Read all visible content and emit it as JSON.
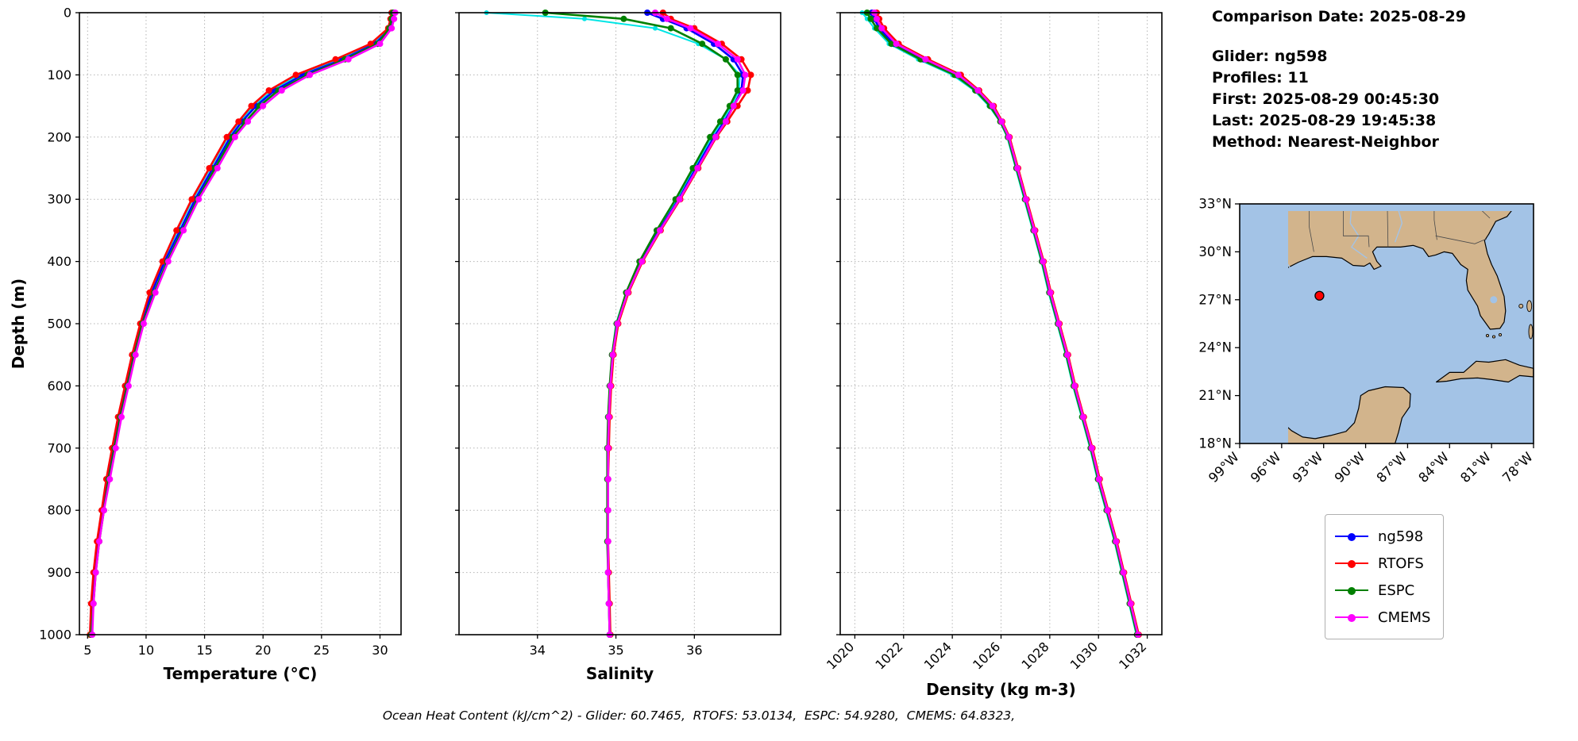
{
  "figure": {
    "background": "#ffffff"
  },
  "info_panel": {
    "comparison_date": "Comparison Date: 2025-08-29",
    "lines": [
      "Glider: ng598",
      "Profiles: 11",
      "First: 2025-08-29 00:45:30",
      "Last: 2025-08-29 19:45:38",
      "Method: Nearest-Neighbor"
    ]
  },
  "legend": {
    "items": [
      {
        "label": "ng598",
        "color": "#0000ff"
      },
      {
        "label": "RTOFS",
        "color": "#ff0000"
      },
      {
        "label": "ESPC",
        "color": "#008000"
      },
      {
        "label": "CMEMS",
        "color": "#ff00ff"
      }
    ]
  },
  "footer": {
    "ohc_text": "Ocean Heat Content (kJ/cm^2) - Glider: 60.7465,  RTOFS: 53.0134,  ESPC: 54.9280,  CMEMS: 64.8323,"
  },
  "map": {
    "land_color": "#d2b48c",
    "ocean_color": "#a3c3e6",
    "lat_tick_labels": [
      "33°N",
      "30°N",
      "27°N",
      "24°N",
      "21°N",
      "18°N"
    ],
    "lat_tick_values": [
      33,
      30,
      27,
      24,
      21,
      18
    ],
    "lon_tick_labels": [
      "99°W",
      "96°W",
      "93°W",
      "90°W",
      "87°W",
      "84°W",
      "81°W",
      "78°W"
    ],
    "lon_tick_values": [
      99,
      96,
      93,
      90,
      87,
      84,
      81,
      78
    ],
    "extent": {
      "lon_w_min": 99,
      "lon_w_max": 78,
      "lat_min": 18,
      "lat_max": 33
    },
    "marker": {
      "lon_w": 93.3,
      "lat": 27.25,
      "color": "#ff0000"
    }
  },
  "chart_data": [
    {
      "type": "line",
      "xlabel": "Temperature (°C)",
      "ylabel": "Depth (m)",
      "xlim": [
        4.3,
        31.8
      ],
      "ylim": [
        1000,
        0
      ],
      "xticks": [
        5,
        10,
        15,
        20,
        25,
        30
      ],
      "yticks": [
        0,
        100,
        200,
        300,
        400,
        500,
        600,
        700,
        800,
        900,
        1000
      ],
      "rotate_xticklabels": false,
      "depths": [
        0,
        10,
        25,
        50,
        75,
        100,
        125,
        150,
        175,
        200,
        250,
        300,
        350,
        400,
        450,
        500,
        550,
        600,
        650,
        700,
        750,
        800,
        850,
        900,
        950,
        1000
      ],
      "series": [
        {
          "name": "",
          "color": "#00e5e5",
          "lw": 2,
          "ms": 3,
          "values": [
            30.9,
            31.0,
            30.8,
            29.4,
            26.5,
            23.1,
            20.8,
            19.2,
            18.0,
            17.0,
            15.5,
            14.0,
            12.7,
            11.5,
            10.4,
            9.5,
            8.8,
            8.2,
            7.6,
            7.1,
            6.6,
            6.2,
            5.8,
            5.5,
            5.3,
            5.2
          ]
        },
        {
          "name": "ng598",
          "color": "#0000ff",
          "values": [
            31.2,
            31.1,
            30.9,
            29.6,
            26.8,
            23.4,
            21.0,
            19.4,
            18.2,
            17.2,
            15.7,
            14.2,
            12.9,
            11.6,
            10.5,
            9.6,
            8.9,
            8.3,
            7.7,
            7.2,
            6.7,
            6.3,
            5.9,
            5.6,
            5.4,
            5.3
          ]
        },
        {
          "name": "RTOFS",
          "color": "#ff0000",
          "values": [
            31.0,
            30.9,
            30.7,
            29.2,
            26.2,
            22.8,
            20.5,
            19.0,
            17.9,
            16.9,
            15.4,
            13.9,
            12.6,
            11.4,
            10.3,
            9.5,
            8.8,
            8.2,
            7.6,
            7.1,
            6.6,
            6.2,
            5.8,
            5.5,
            5.3,
            5.2
          ]
        },
        {
          "name": "ESPC",
          "color": "#008000",
          "values": [
            31.1,
            31.0,
            30.8,
            29.8,
            27.0,
            23.8,
            21.3,
            19.7,
            18.5,
            17.4,
            15.9,
            14.4,
            13.1,
            11.8,
            10.7,
            9.7,
            9.0,
            8.4,
            7.8,
            7.3,
            6.8,
            6.4,
            6.0,
            5.7,
            5.5,
            5.3
          ]
        },
        {
          "name": "CMEMS",
          "color": "#ff00ff",
          "values": [
            31.3,
            31.2,
            31.0,
            30.0,
            27.3,
            24.0,
            21.6,
            20.0,
            18.7,
            17.6,
            16.1,
            14.5,
            13.2,
            11.9,
            10.8,
            9.8,
            9.1,
            8.5,
            7.9,
            7.4,
            6.9,
            6.4,
            6.0,
            5.7,
            5.5,
            5.4
          ]
        }
      ]
    },
    {
      "type": "line",
      "xlabel": "Salinity",
      "ylabel": "",
      "xlim": [
        33.0,
        37.1
      ],
      "ylim": [
        1000,
        0
      ],
      "xticks": [
        34,
        35,
        36
      ],
      "yticks": [
        0,
        100,
        200,
        300,
        400,
        500,
        600,
        700,
        800,
        900,
        1000
      ],
      "rotate_xticklabels": false,
      "depths": [
        0,
        10,
        25,
        50,
        75,
        100,
        125,
        150,
        175,
        200,
        250,
        300,
        350,
        400,
        450,
        500,
        550,
        600,
        650,
        700,
        750,
        800,
        850,
        900,
        950,
        1000
      ],
      "series": [
        {
          "name": "",
          "color": "#00e5e5",
          "lw": 2,
          "ms": 3,
          "values": [
            33.35,
            34.6,
            35.5,
            36.05,
            36.4,
            36.58,
            36.57,
            36.47,
            36.35,
            36.22,
            36.0,
            35.78,
            35.53,
            35.3,
            35.13,
            35.0,
            34.95,
            34.92,
            34.9,
            34.89,
            34.89,
            34.89,
            34.89,
            34.9,
            34.91,
            34.92
          ]
        },
        {
          "name": "ng598",
          "color": "#0000ff",
          "values": [
            35.4,
            35.6,
            35.9,
            36.25,
            36.5,
            36.62,
            36.6,
            36.5,
            36.38,
            36.25,
            36.02,
            35.8,
            35.55,
            35.32,
            35.15,
            35.02,
            34.96,
            34.93,
            34.91,
            34.9,
            34.9,
            34.9,
            34.9,
            34.9,
            34.91,
            34.92
          ]
        },
        {
          "name": "RTOFS",
          "color": "#ff0000",
          "values": [
            35.6,
            35.7,
            36.0,
            36.35,
            36.6,
            36.72,
            36.68,
            36.55,
            36.42,
            36.28,
            36.05,
            35.82,
            35.57,
            35.34,
            35.16,
            35.03,
            34.97,
            34.94,
            34.92,
            34.91,
            34.9,
            34.9,
            34.9,
            34.91,
            34.92,
            34.93
          ]
        },
        {
          "name": "ESPC",
          "color": "#008000",
          "values": [
            34.1,
            35.1,
            35.7,
            36.1,
            36.4,
            36.55,
            36.55,
            36.45,
            36.33,
            36.2,
            35.98,
            35.76,
            35.52,
            35.3,
            35.13,
            35.01,
            34.95,
            34.92,
            34.9,
            34.89,
            34.89,
            34.89,
            34.89,
            34.9,
            34.91,
            34.92
          ]
        },
        {
          "name": "CMEMS",
          "color": "#ff00ff",
          "values": [
            35.5,
            35.65,
            35.95,
            36.3,
            36.55,
            36.65,
            36.62,
            36.5,
            36.4,
            36.27,
            36.04,
            35.81,
            35.56,
            35.33,
            35.15,
            35.02,
            34.96,
            34.93,
            34.91,
            34.9,
            34.9,
            34.9,
            34.9,
            34.9,
            34.91,
            34.92
          ]
        }
      ]
    },
    {
      "type": "line",
      "xlabel": "Density (kg m-3)",
      "ylabel": "",
      "xlim": [
        1019.4,
        1032.6
      ],
      "ylim": [
        1000,
        0
      ],
      "xticks": [
        1020,
        1022,
        1024,
        1026,
        1028,
        1030,
        1032
      ],
      "yticks": [
        0,
        100,
        200,
        300,
        400,
        500,
        600,
        700,
        800,
        900,
        1000
      ],
      "rotate_xticklabels": true,
      "depths": [
        0,
        10,
        25,
        50,
        75,
        100,
        125,
        150,
        175,
        200,
        250,
        300,
        350,
        400,
        450,
        500,
        550,
        600,
        650,
        700,
        750,
        800,
        850,
        900,
        950,
        1000
      ],
      "series": [
        {
          "name": "",
          "color": "#00e5e5",
          "lw": 2,
          "ms": 3,
          "values": [
            1020.3,
            1020.5,
            1020.8,
            1021.4,
            1022.6,
            1024.0,
            1024.9,
            1025.5,
            1025.95,
            1026.25,
            1026.6,
            1026.95,
            1027.3,
            1027.65,
            1027.95,
            1028.3,
            1028.65,
            1028.95,
            1029.3,
            1029.65,
            1029.95,
            1030.3,
            1030.65,
            1030.95,
            1031.25,
            1031.55
          ]
        },
        {
          "name": "ng598",
          "color": "#0000ff",
          "values": [
            1020.7,
            1020.8,
            1021.0,
            1021.6,
            1022.8,
            1024.2,
            1025.0,
            1025.6,
            1026.0,
            1026.3,
            1026.65,
            1027.0,
            1027.35,
            1027.7,
            1028.0,
            1028.35,
            1028.7,
            1029.0,
            1029.35,
            1029.7,
            1030.0,
            1030.35,
            1030.7,
            1031.0,
            1031.3,
            1031.6
          ]
        },
        {
          "name": "RTOFS",
          "color": "#ff0000",
          "values": [
            1020.9,
            1021.0,
            1021.2,
            1021.8,
            1023.0,
            1024.35,
            1025.1,
            1025.7,
            1026.05,
            1026.35,
            1026.7,
            1027.05,
            1027.4,
            1027.75,
            1028.05,
            1028.4,
            1028.75,
            1029.05,
            1029.4,
            1029.75,
            1030.05,
            1030.4,
            1030.75,
            1031.05,
            1031.35,
            1031.65
          ]
        },
        {
          "name": "ESPC",
          "color": "#008000",
          "values": [
            1020.5,
            1020.65,
            1020.9,
            1021.5,
            1022.7,
            1024.1,
            1024.95,
            1025.55,
            1025.97,
            1026.28,
            1026.63,
            1026.98,
            1027.33,
            1027.68,
            1027.98,
            1028.33,
            1028.68,
            1028.98,
            1029.33,
            1029.68,
            1029.98,
            1030.33,
            1030.68,
            1030.98,
            1031.28,
            1031.58
          ]
        },
        {
          "name": "CMEMS",
          "color": "#ff00ff",
          "values": [
            1020.8,
            1020.9,
            1021.1,
            1021.7,
            1022.9,
            1024.25,
            1025.05,
            1025.65,
            1026.02,
            1026.32,
            1026.67,
            1027.02,
            1027.37,
            1027.72,
            1028.02,
            1028.37,
            1028.72,
            1029.02,
            1029.37,
            1029.72,
            1030.02,
            1030.37,
            1030.72,
            1031.02,
            1031.32,
            1031.62
          ]
        }
      ]
    }
  ]
}
